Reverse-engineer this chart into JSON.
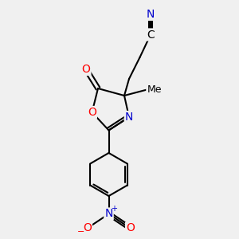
{
  "bg_color": "#f0f0f0",
  "atom_color_N": "#0000cc",
  "atom_color_O": "#ff0000",
  "atom_color_default": "#000000",
  "bond_color": "#000000",
  "bond_width": 1.5,
  "font_size_atom": 10,
  "figsize": [
    3.0,
    3.0
  ],
  "dpi": 100,
  "xlim": [
    0,
    10
  ],
  "ylim": [
    0,
    10
  ]
}
